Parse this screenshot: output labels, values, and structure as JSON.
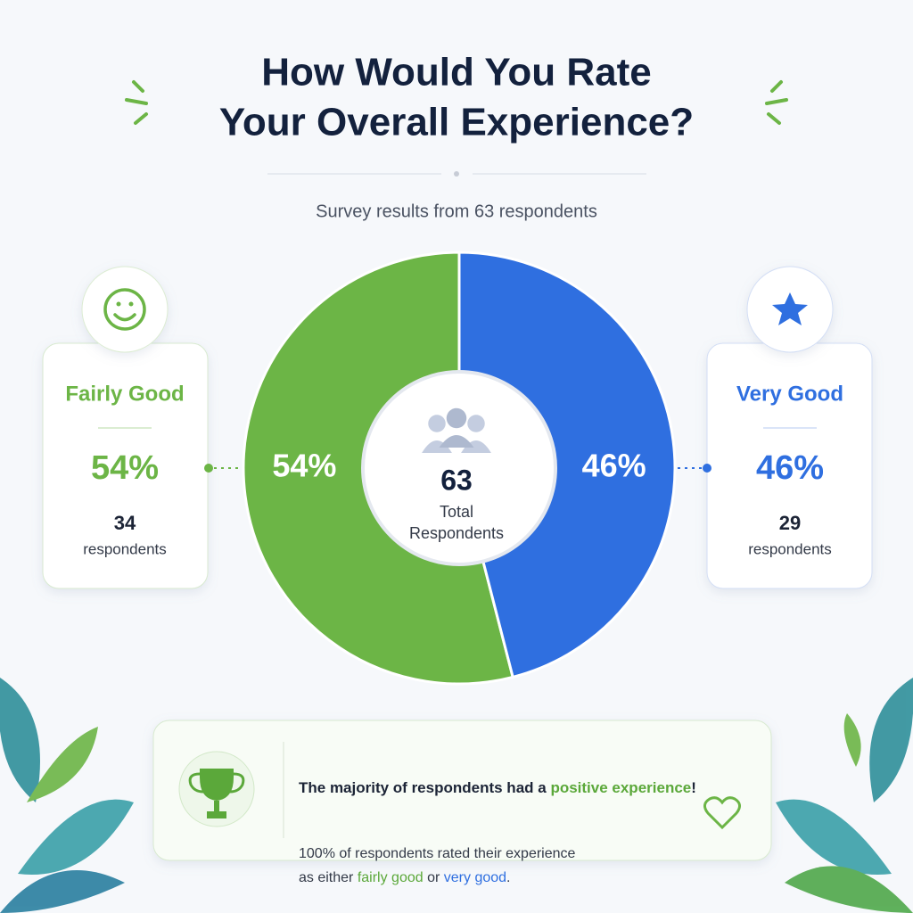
{
  "chart_data": {
    "type": "pie",
    "donut": true,
    "title": [
      "How Would You Rate",
      "Your Overall Experience?"
    ],
    "subtitle": "Survey results from 63 respondents",
    "categories": [
      "Fairly Good",
      "Very Good"
    ],
    "values": [
      54,
      46
    ],
    "value_labels": [
      "54%",
      "46%"
    ],
    "colors": [
      "#6cb546",
      "#2f6fe0"
    ],
    "counts": [
      34,
      29
    ],
    "count_label": "respondents",
    "center": {
      "value": 63,
      "label": [
        "Total",
        "Respondents"
      ]
    }
  },
  "callout": {
    "heading": [
      "The majority of respondents had a ",
      "positive experience",
      "!"
    ],
    "body": [
      "100% of respondents rated their experience",
      "as either ",
      "fairly good",
      " or ",
      "very good",
      "."
    ]
  }
}
